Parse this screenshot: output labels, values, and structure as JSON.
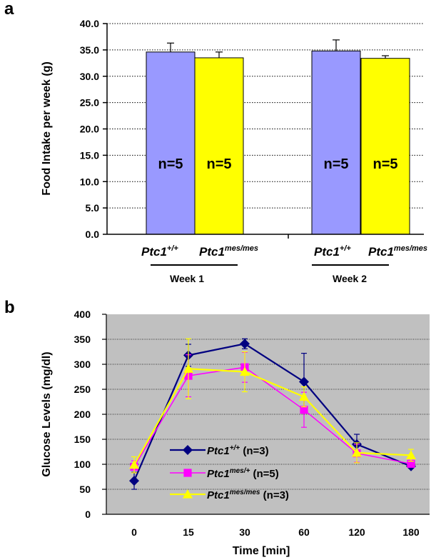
{
  "panel_a": {
    "letter": "a",
    "week_labels": [
      "Week 1",
      "Week 2"
    ],
    "genotypes": [
      {
        "base": "Ptc1",
        "sup": "+/+"
      },
      {
        "base": "Ptc1",
        "sup": "mes/mes"
      },
      {
        "base": "Ptc1",
        "sup": "+/+"
      },
      {
        "base": "Ptc1",
        "sup": "mes/mes"
      }
    ]
  },
  "panel_b": {
    "letter": "b",
    "legend": [
      {
        "base": "Ptc1",
        "sup": "+/+",
        "suffix": " (n=3)"
      },
      {
        "base": "Ptc1",
        "sup": "mes/+",
        "suffix": " (n=5)"
      },
      {
        "base": "Ptc1",
        "sup": "mes/mes",
        "suffix": " (n=3)"
      }
    ]
  },
  "colors": {
    "wt_bar": "#9999ff",
    "mes_bar": "#ffff00",
    "plot_bg": "#c0c0c0",
    "series_wt": "#000080",
    "series_mes_het": "#ff00ff",
    "series_mes_hom": "#ffff00"
  },
  "chart_data": [
    {
      "type": "bar",
      "ylabel": "Food Intake per week (g)",
      "ylim": [
        0,
        40
      ],
      "yticks": [
        "0.0",
        "5.0",
        "10.0",
        "15.0",
        "20.0",
        "25.0",
        "30.0",
        "35.0",
        "40.0"
      ],
      "grid": true,
      "categories": [
        "Week 1",
        "Week 2"
      ],
      "series": [
        {
          "values": [
            34.6,
            34.8
          ],
          "errors": [
            1.7,
            2.1
          ],
          "labels": [
            "n=5",
            "n=5"
          ]
        },
        {
          "values": [
            33.5,
            33.4
          ],
          "errors": [
            1.1,
            0.5
          ],
          "labels": [
            "n=5",
            "n=5"
          ]
        }
      ]
    },
    {
      "type": "line",
      "xlabel": "Time [min]",
      "ylabel": "Glucose Levels (mg/dl)",
      "x": [
        "0",
        "15",
        "30",
        "60",
        "120",
        "180"
      ],
      "ylim": [
        0,
        400
      ],
      "yticks": [
        "0",
        "50",
        "100",
        "150",
        "200",
        "250",
        "300",
        "350",
        "400"
      ],
      "grid": true,
      "legend_position": "bottom-left",
      "series": [
        {
          "name": "Ptc1+/+ (n=3)",
          "marker": "diamond",
          "values": [
            67,
            318,
            341,
            265,
            140,
            96
          ],
          "errors": [
            17,
            22,
            10,
            57,
            20,
            0
          ]
        },
        {
          "name": "Ptc1mes/+ (n=5)",
          "marker": "square",
          "values": [
            95,
            277,
            294,
            209,
            122,
            101
          ],
          "errors": [
            12,
            42,
            30,
            35,
            18,
            0
          ]
        },
        {
          "name": "Ptc1mes/mes (n=3)",
          "marker": "triangle",
          "values": [
            99,
            291,
            285,
            235,
            123,
            118
          ],
          "errors": [
            16,
            60,
            40,
            20,
            20,
            12
          ]
        }
      ]
    }
  ]
}
